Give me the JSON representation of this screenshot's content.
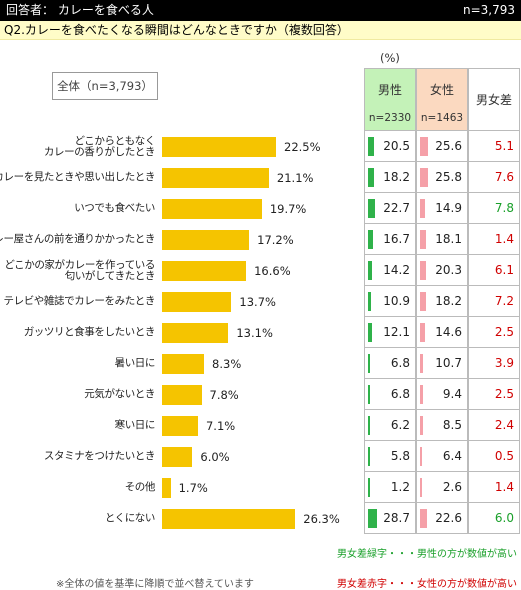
{
  "header": {
    "respondents": "回答者： カレーを食べる人",
    "n": "n=3,793"
  },
  "question": "Q2.カレーを食べたくなる瞬間はどんなときですか（複数回答）",
  "total_label": "全体（n=3,793）",
  "unit": "(%)",
  "table": {
    "male_label": "男性",
    "male_n": "n=2330",
    "female_label": "女性",
    "female_n": "n=1463",
    "diff_label": "男女差"
  },
  "colors": {
    "bar": "#f5c400",
    "male": "#2fb24a",
    "female": "#f5a0a8",
    "diff_green": "#1aa02a",
    "diff_red": "#d00000"
  },
  "chart_data": {
    "type": "bar",
    "orientation": "horizontal",
    "categories": [
      [
        "どこからともなく",
        "カレーの香りがしたとき"
      ],
      [
        "カレーを見たときや思い出したとき"
      ],
      [
        "いつでも食べたい"
      ],
      [
        "カレー屋さんの前を通りかかったとき"
      ],
      [
        "どこかの家がカレーを作っている",
        "匂いがしてきたとき"
      ],
      [
        "テレビや雑誌でカレーをみたとき"
      ],
      [
        "ガッツリと食事をしたいとき"
      ],
      [
        "暑い日に"
      ],
      [
        "元気がないとき"
      ],
      [
        "寒い日に"
      ],
      [
        "スタミナをつけたいとき"
      ],
      [
        "その他"
      ],
      [
        "とくにない"
      ]
    ],
    "total": [
      "22.5%",
      "21.1%",
      "19.7%",
      "17.2%",
      "16.6%",
      "13.7%",
      "13.1%",
      "8.3%",
      "7.8%",
      "7.1%",
      "6.0%",
      "1.7%",
      "26.3%"
    ],
    "male": [
      "20.5",
      "18.2",
      "22.7",
      "16.7",
      "14.2",
      "10.9",
      "12.1",
      "6.8",
      "6.8",
      "6.2",
      "5.8",
      "1.2",
      "28.7"
    ],
    "female": [
      "25.6",
      "25.8",
      "14.9",
      "18.1",
      "20.3",
      "18.2",
      "14.6",
      "10.7",
      "9.4",
      "8.5",
      "6.4",
      "2.6",
      "22.6"
    ],
    "diff": [
      "5.1",
      "7.6",
      "7.8",
      "1.4",
      "6.1",
      "7.2",
      "2.5",
      "3.9",
      "2.5",
      "2.4",
      "0.5",
      "1.4",
      "6.0"
    ],
    "diff_color": [
      "red",
      "red",
      "green",
      "red",
      "red",
      "red",
      "red",
      "red",
      "red",
      "red",
      "red",
      "red",
      "green"
    ]
  },
  "legend": {
    "green": "男女差緑字・・・男性の方が数値が高い",
    "red": "男女差赤字・・・女性の方が数値が高い"
  },
  "footnote": "※全体の値を基準に降順で並べ替えています"
}
